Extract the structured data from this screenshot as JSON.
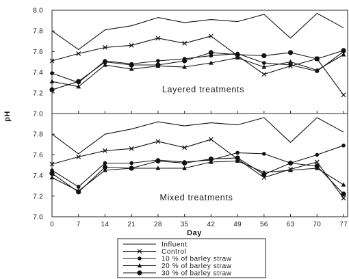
{
  "figure": {
    "ylabel": "pH",
    "line_color": "#111111"
  },
  "chart_data": [
    {
      "type": "line",
      "annotation": "Layered treatments",
      "xlabel": "",
      "x": [
        0,
        7,
        14,
        21,
        28,
        35,
        42,
        49,
        56,
        63,
        70,
        77
      ],
      "xlim": [
        0,
        77
      ],
      "ylim": [
        7.0,
        8.0
      ],
      "y_tick_labels": [
        "8.0",
        "7.8",
        "7.6",
        "7.4",
        "7.2",
        "7.0"
      ],
      "x_tick_labels": [],
      "grid": false,
      "series": [
        {
          "name": "Influent",
          "marker": "none",
          "values": [
            7.8,
            7.62,
            7.81,
            7.85,
            7.93,
            7.88,
            7.91,
            7.89,
            7.96,
            7.73,
            7.97,
            7.83
          ]
        },
        {
          "name": "Control",
          "marker": "x",
          "values": [
            7.51,
            7.58,
            7.64,
            7.66,
            7.73,
            7.68,
            7.75,
            7.56,
            7.38,
            7.46,
            7.53,
            7.18
          ]
        },
        {
          "name": "10 % of barley straw",
          "marker": "circle",
          "values": [
            7.39,
            7.3,
            7.51,
            7.48,
            7.51,
            7.53,
            7.56,
            7.58,
            7.49,
            7.47,
            7.41,
            7.6
          ]
        },
        {
          "name": "20 % of barley straw",
          "marker": "triangle",
          "values": [
            7.31,
            7.26,
            7.47,
            7.43,
            7.46,
            7.45,
            7.49,
            7.54,
            7.45,
            7.5,
            7.42,
            7.57
          ]
        },
        {
          "name": "30 % of barley straw",
          "marker": "circle-large",
          "values": [
            7.23,
            7.31,
            7.5,
            7.47,
            7.47,
            7.51,
            7.59,
            7.57,
            7.56,
            7.59,
            7.53,
            7.61
          ]
        }
      ]
    },
    {
      "type": "line",
      "annotation": "Mixed treatments",
      "xlabel": "Day",
      "x": [
        0,
        7,
        14,
        21,
        28,
        35,
        42,
        49,
        56,
        63,
        70,
        77
      ],
      "xlim": [
        0,
        77
      ],
      "ylim": [
        7.0,
        8.0
      ],
      "y_tick_labels": [
        "7.8",
        "7.6",
        "7.4",
        "7.2",
        "7.0"
      ],
      "x_tick_labels": [
        "0",
        "7",
        "14",
        "21",
        "28",
        "35",
        "42",
        "49",
        "56",
        "63",
        "70",
        "77"
      ],
      "grid": false,
      "legend": "bottom",
      "series": [
        {
          "name": "Influent",
          "marker": "none",
          "values": [
            7.8,
            7.61,
            7.8,
            7.85,
            7.92,
            7.88,
            7.91,
            7.89,
            7.96,
            7.72,
            7.96,
            7.82
          ]
        },
        {
          "name": "Control",
          "marker": "x",
          "values": [
            7.51,
            7.58,
            7.64,
            7.66,
            7.73,
            7.67,
            7.75,
            7.56,
            7.38,
            7.46,
            7.53,
            7.18
          ]
        },
        {
          "name": "10 % of barley straw",
          "marker": "circle",
          "values": [
            7.45,
            7.29,
            7.52,
            7.52,
            7.55,
            7.53,
            7.55,
            7.62,
            7.61,
            7.52,
            7.6,
            7.69
          ]
        },
        {
          "name": "20 % of barley straw",
          "marker": "triangle",
          "values": [
            7.38,
            7.25,
            7.45,
            7.47,
            7.47,
            7.47,
            7.53,
            7.54,
            7.43,
            7.45,
            7.47,
            7.31
          ]
        },
        {
          "name": "30 % of barley straw",
          "marker": "circle-large",
          "values": [
            7.42,
            7.24,
            7.48,
            7.47,
            7.54,
            7.52,
            7.56,
            7.57,
            7.41,
            7.52,
            7.49,
            7.22
          ]
        }
      ]
    }
  ]
}
